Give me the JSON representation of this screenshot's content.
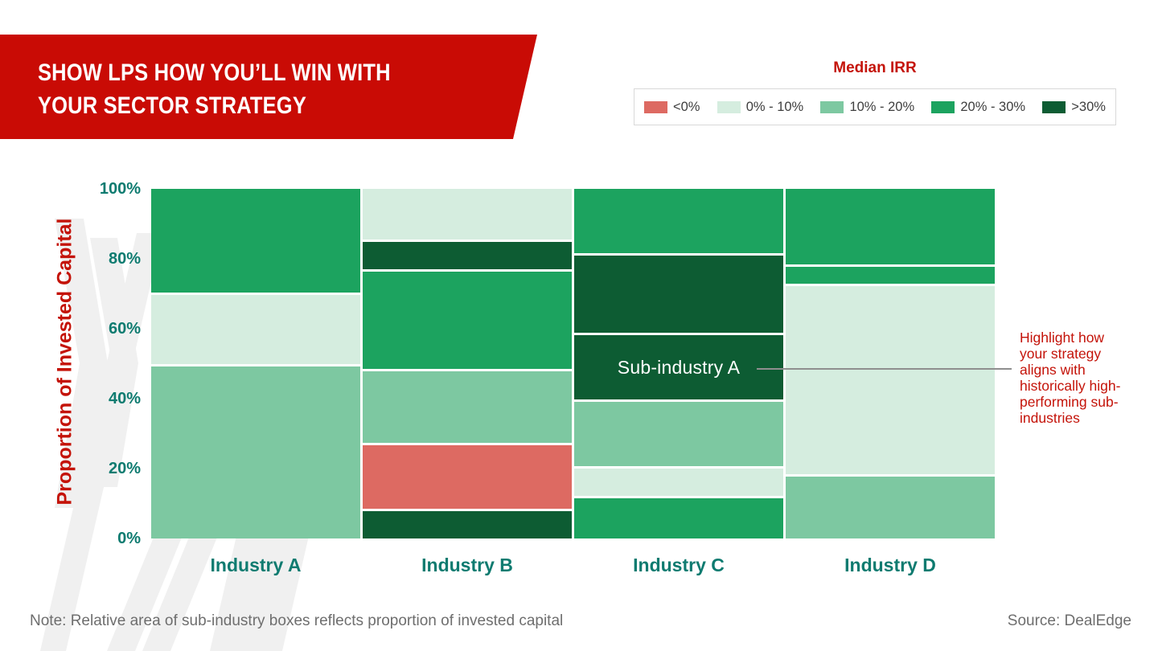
{
  "banner": {
    "title_line1": "SHOW LPS HOW YOU’LL WIN WITH",
    "title_line2": "YOUR SECTOR STRATEGY",
    "background_color": "#C90B05"
  },
  "legend": {
    "title": "Median IRR",
    "items": [
      {
        "label": "<0%",
        "color": "#DD6A62"
      },
      {
        "label": "0% - 10%",
        "color": "#D5EDDF"
      },
      {
        "label": "10% - 20%",
        "color": "#7DC8A1"
      },
      {
        "label": "20% - 30%",
        "color": "#1CA35F"
      },
      {
        "label": ">30%",
        "color": "#0D5C33"
      }
    ]
  },
  "chart_data": {
    "type": "bar",
    "variant": "100%-stacked-mekko",
    "ylabel": "Proportion of Invested Capital",
    "ylim": [
      0,
      100
    ],
    "yticks": [
      "100%",
      "80%",
      "60%",
      "40%",
      "20%",
      "0%"
    ],
    "grid": false,
    "legend_position": "top-right",
    "categories": [
      "Industry A",
      "Industry B",
      "Industry C",
      "Industry D"
    ],
    "bars": [
      {
        "category": "Industry A",
        "segments": [
          {
            "bucket": "20% - 30%",
            "value": 30
          },
          {
            "bucket": "0% - 10%",
            "value": 20
          },
          {
            "bucket": "10% - 20%",
            "value": 50
          }
        ]
      },
      {
        "category": "Industry B",
        "segments": [
          {
            "bucket": "0% - 10%",
            "value": 15
          },
          {
            "bucket": ">30%",
            "value": 8
          },
          {
            "bucket": "20% - 30%",
            "value": 29
          },
          {
            "bucket": "10% - 20%",
            "value": 21
          },
          {
            "bucket": "<0%",
            "value": 19
          },
          {
            "bucket": ">30%",
            "value": 8
          }
        ]
      },
      {
        "category": "Industry C",
        "segments": [
          {
            "bucket": "20% - 30%",
            "value": 19
          },
          {
            "bucket": ">30%",
            "value": 23
          },
          {
            "bucket": ">30%",
            "value": 19,
            "label": "Sub-industry A"
          },
          {
            "bucket": "10% - 20%",
            "value": 19
          },
          {
            "bucket": "0% - 10%",
            "value": 8
          },
          {
            "bucket": "20% - 30%",
            "value": 12
          }
        ]
      },
      {
        "category": "Industry D",
        "segments": [
          {
            "bucket": "20% - 30%",
            "value": 22
          },
          {
            "bucket": "20% - 30%",
            "value": 5
          },
          {
            "bucket": "0% - 10%",
            "value": 55
          },
          {
            "bucket": "10% - 20%",
            "value": 18
          }
        ]
      }
    ]
  },
  "annotation": {
    "text": "Highlight how your strategy aligns with historically high-performing sub-industries"
  },
  "footer": {
    "note": "Note: Relative area of sub-industry boxes reflects proportion of invested capital",
    "source": "Source: DealEdge"
  },
  "colors": {
    "red_text": "#C41309",
    "teal_axis": "#0E7B70",
    "note_gray": "#6E6E6E",
    "connector_gray": "#8F8F8F",
    "watermark_gray": "#F0F0F0"
  }
}
